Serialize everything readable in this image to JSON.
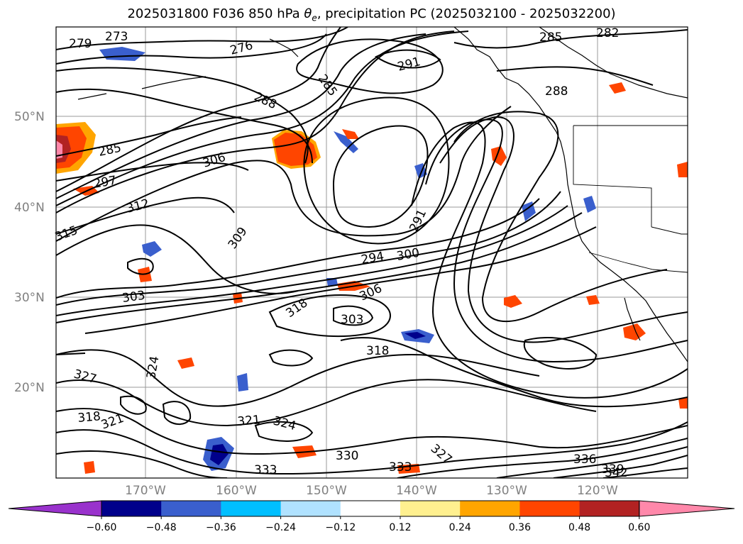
{
  "title_prefix": "2025031800 F036 850 hPa ",
  "title_symbol": "θ",
  "title_symbol_sub": "e",
  "title_suffix": ", precipitation PC (2025032100 - 2025032200)",
  "lat_labels": [
    "50°N",
    "40°N",
    "30°N",
    "20°N"
  ],
  "lon_labels": [
    "170°W",
    "160°W",
    "150°W",
    "140°W",
    "130°W",
    "120°W"
  ],
  "contour_labels": [
    "273",
    "276",
    "279",
    "285",
    "285",
    "288",
    "291",
    "291",
    "294",
    "297",
    "300",
    "303",
    "303",
    "306",
    "306",
    "309",
    "312",
    "315",
    "318",
    "318",
    "318",
    "321",
    "321",
    "324",
    "324",
    "327",
    "327",
    "330",
    "333",
    "333",
    "336",
    "339",
    "342",
    "285",
    "282",
    "288"
  ],
  "colorbar": {
    "ticks": [
      "−0.60",
      "−0.48",
      "−0.36",
      "−0.24",
      "−0.12",
      "0.12",
      "0.24",
      "0.36",
      "0.48",
      "0.60"
    ],
    "colors": [
      "#9932cc",
      "#00008b",
      "#3a5fcd",
      "#00bfff",
      "#b0e2ff",
      "#ffffff",
      "#fff08f",
      "#ffa500",
      "#ff4500",
      "#b22222",
      "#ff88aa"
    ]
  }
}
